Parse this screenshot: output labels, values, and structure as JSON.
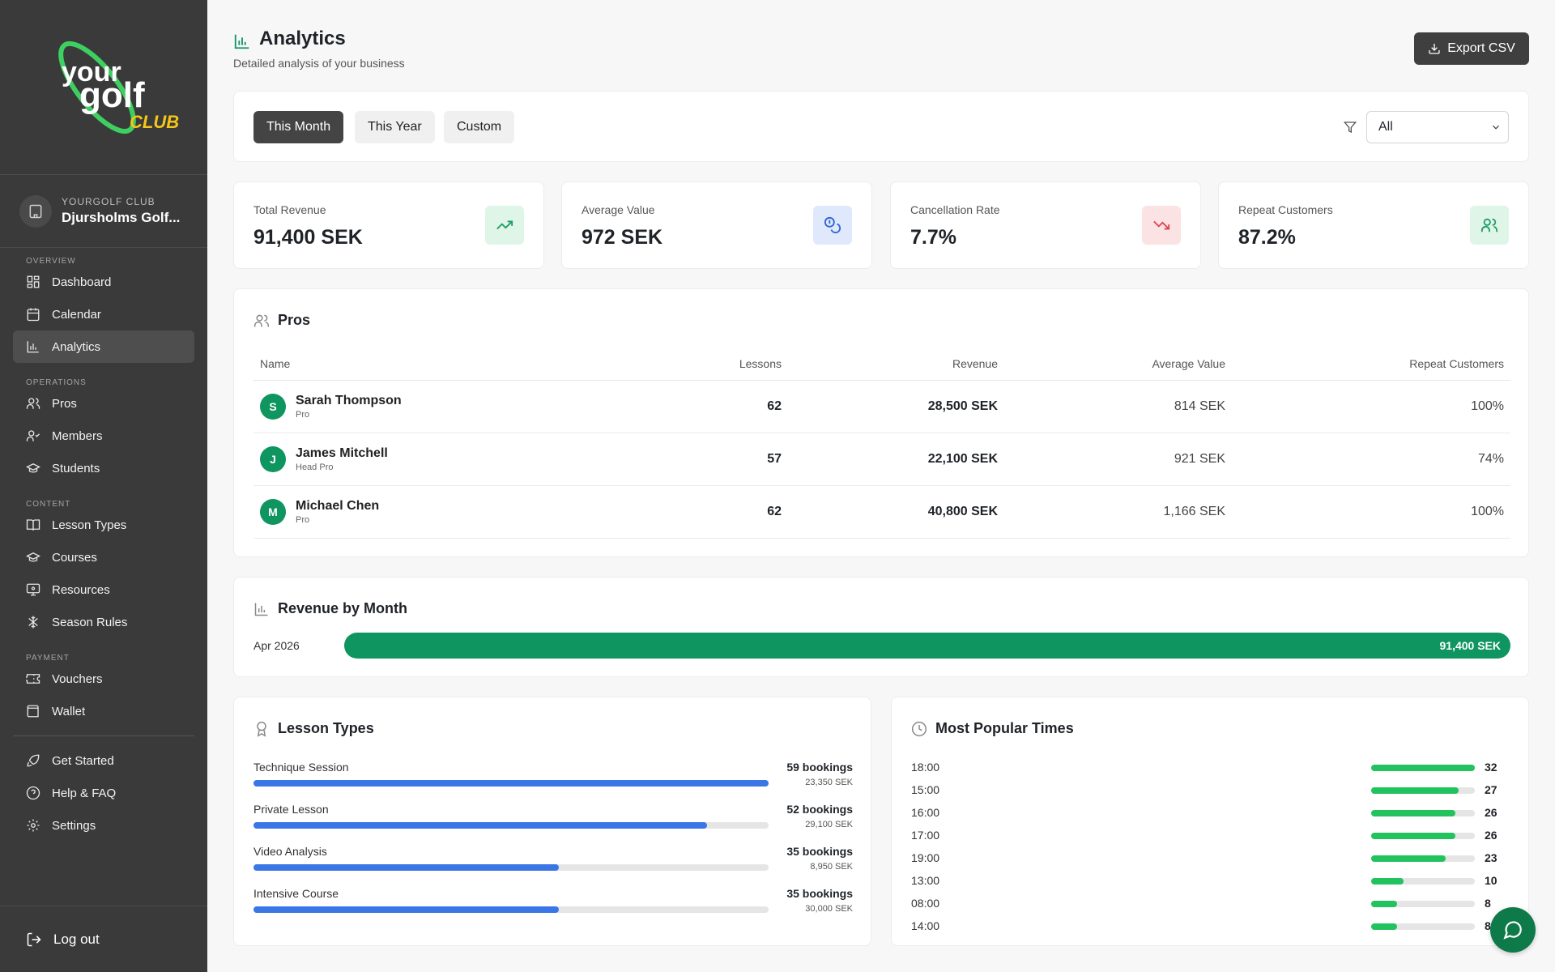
{
  "sidebar": {
    "logo_text_1": "your",
    "logo_text_2": "golf",
    "logo_text_3": "CLUB",
    "club_label": "YOURGOLF CLUB",
    "club_name": "Djursholms Golf...",
    "sections": {
      "overview": "OVERVIEW",
      "operations": "OPERATIONS",
      "content": "CONTENT",
      "payment": "PAYMENT"
    },
    "items": {
      "dashboard": "Dashboard",
      "calendar": "Calendar",
      "analytics": "Analytics",
      "pros": "Pros",
      "members": "Members",
      "students": "Students",
      "lesson_types": "Lesson Types",
      "courses": "Courses",
      "resources": "Resources",
      "season_rules": "Season Rules",
      "vouchers": "Vouchers",
      "wallet": "Wallet",
      "get_started": "Get Started",
      "help": "Help & FAQ",
      "settings": "Settings"
    },
    "logout": "Log out"
  },
  "header": {
    "title": "Analytics",
    "subtitle": "Detailed analysis of your business",
    "export_label": "Export CSV"
  },
  "filters": {
    "tabs": [
      "This Month",
      "This Year",
      "Custom"
    ],
    "active_tab": "This Month",
    "select_value": "All"
  },
  "kpis": [
    {
      "label": "Total Revenue",
      "value": "91,400 SEK",
      "icon": "trending-up-icon",
      "color": "#1f9d63"
    },
    {
      "label": "Average Value",
      "value": "972 SEK",
      "icon": "coins-icon",
      "color": "#2f63d6"
    },
    {
      "label": "Cancellation Rate",
      "value": "7.7%",
      "icon": "trending-down-icon",
      "color": "#e0454f"
    },
    {
      "label": "Repeat Customers",
      "value": "87.2%",
      "icon": "users-icon",
      "color": "#1f9d63"
    }
  ],
  "pros": {
    "title": "Pros",
    "columns": [
      "Name",
      "Lessons",
      "Revenue",
      "Average Value",
      "Repeat Customers"
    ],
    "rows": [
      {
        "initial": "S",
        "name": "Sarah Thompson",
        "role": "Pro",
        "lessons": "62",
        "revenue": "28,500 SEK",
        "avg": "814 SEK",
        "repeat": "100%"
      },
      {
        "initial": "J",
        "name": "James Mitchell",
        "role": "Head Pro",
        "lessons": "57",
        "revenue": "22,100 SEK",
        "avg": "921 SEK",
        "repeat": "74%"
      },
      {
        "initial": "M",
        "name": "Michael Chen",
        "role": "Pro",
        "lessons": "62",
        "revenue": "40,800 SEK",
        "avg": "1,166 SEK",
        "repeat": "100%"
      }
    ]
  },
  "revenue_by_month": {
    "title": "Revenue by Month",
    "rows": [
      {
        "month": "Apr 2026",
        "value_label": "91,400 SEK",
        "fraction": 1.0
      }
    ]
  },
  "lesson_types": {
    "title": "Lesson Types",
    "rows": [
      {
        "name": "Technique Session",
        "bookings": "59 bookings",
        "revenue": "23,350 SEK",
        "fraction": 1.0
      },
      {
        "name": "Private Lesson",
        "bookings": "52 bookings",
        "revenue": "29,100 SEK",
        "fraction": 0.881
      },
      {
        "name": "Video Analysis",
        "bookings": "35 bookings",
        "revenue": "8,950 SEK",
        "fraction": 0.593
      },
      {
        "name": "Intensive Course",
        "bookings": "35 bookings",
        "revenue": "30,000 SEK",
        "fraction": 0.593
      }
    ]
  },
  "popular_times": {
    "title": "Most Popular Times",
    "max": 32,
    "rows": [
      {
        "time": "18:00",
        "count": 32
      },
      {
        "time": "15:00",
        "count": 27
      },
      {
        "time": "16:00",
        "count": 26
      },
      {
        "time": "17:00",
        "count": 26
      },
      {
        "time": "19:00",
        "count": 23
      },
      {
        "time": "13:00",
        "count": 10
      },
      {
        "time": "08:00",
        "count": 8
      },
      {
        "time": "14:00",
        "count": 8
      }
    ]
  },
  "colors": {
    "accent_green": "#0f9560",
    "bar_blue": "#3a76e6",
    "bar_green": "#22c35e",
    "sidebar_bg": "#3a3a3a"
  }
}
